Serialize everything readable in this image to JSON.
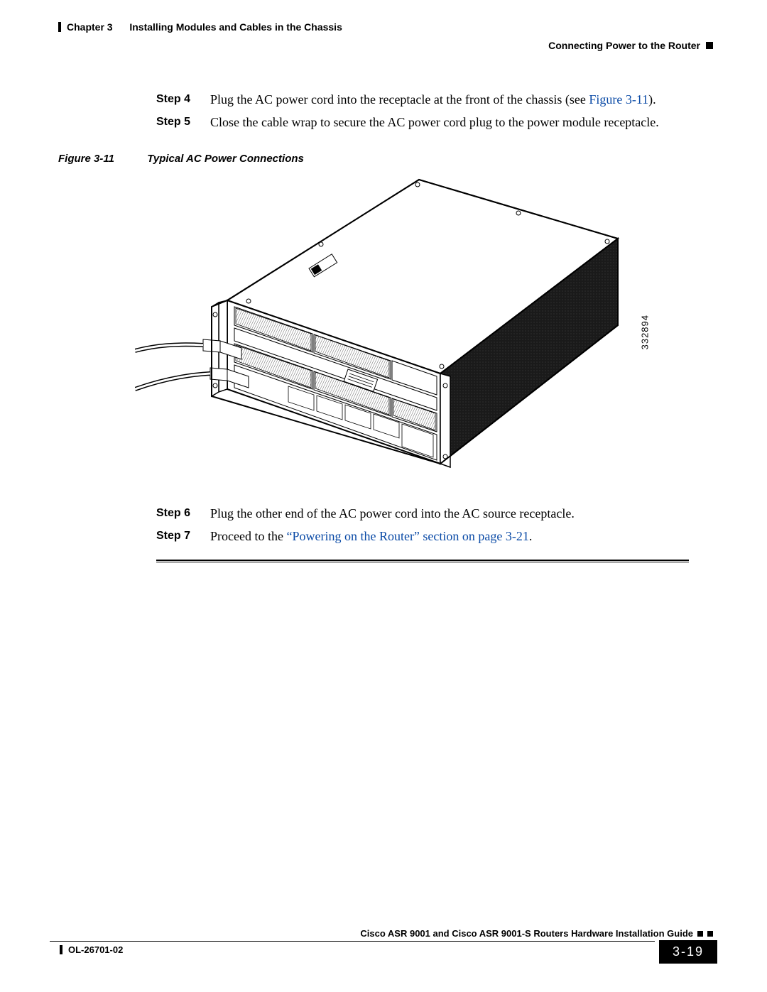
{
  "header": {
    "chapter_label": "Chapter 3",
    "chapter_title": "Installing Modules and Cables in the Chassis",
    "section_title": "Connecting Power to the Router"
  },
  "steps_upper": [
    {
      "label": "Step 4",
      "text_before_link": "Plug the AC power cord into the receptacle at the front of the chassis (see ",
      "link_text": "Figure 3-11",
      "text_after_link": ")."
    },
    {
      "label": "Step 5",
      "text_before_link": "Close the cable wrap to secure the AC power cord plug to the power module receptacle.",
      "link_text": "",
      "text_after_link": ""
    }
  ],
  "figure": {
    "number": "Figure 3-11",
    "title": "Typical AC Power Connections",
    "image_id": "332894",
    "style": {
      "stroke": "#000000",
      "fill": "#ffffff",
      "dark_fill": "#1c1c1c"
    }
  },
  "steps_lower": [
    {
      "label": "Step 6",
      "text_before_link": "Plug the other end of the AC power cord into the AC source receptacle.",
      "link_text": "",
      "text_after_link": ""
    },
    {
      "label": "Step 7",
      "text_before_link": "Proceed to the ",
      "link_text": "“Powering on the Router” section on page 3-21",
      "text_after_link": "."
    }
  ],
  "footer": {
    "doc_title": "Cisco ASR 9001 and Cisco ASR 9001-S Routers Hardware Installation Guide",
    "doc_number": "OL-26701-02",
    "page_number": "3-19"
  },
  "link_color": "#0a4aa6"
}
